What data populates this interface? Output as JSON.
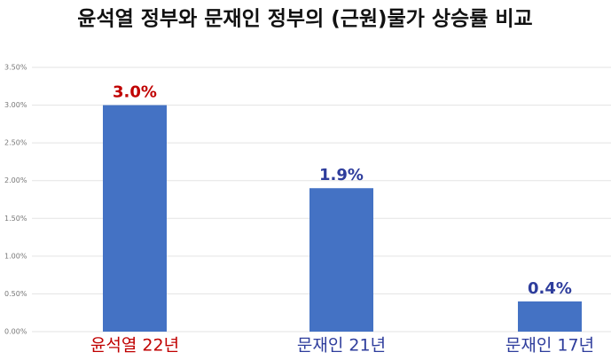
{
  "chart_data": {
    "type": "bar",
    "title": "윤석열 정부와 문재인 정부의 (근원)물가 상승률 비교",
    "categories": [
      "윤석열 22년",
      "문재인 21년",
      "문재인 17년"
    ],
    "values": [
      3.0,
      1.9,
      0.4
    ],
    "value_labels": [
      "3.0%",
      "1.9%",
      "0.4%"
    ],
    "color": "#4472c4",
    "label_colors": [
      "#c00000",
      "#2e3d9c",
      "#2e3d9c"
    ],
    "ylim": [
      0,
      3.5
    ],
    "yticks": [
      {
        "value": 0,
        "label": "0.00%"
      },
      {
        "value": 0.5,
        "label": "0.50%"
      },
      {
        "value": 1,
        "label": "1.00%"
      },
      {
        "value": 1.5,
        "label": "1.50%"
      },
      {
        "value": 2,
        "label": "2.00%"
      },
      {
        "value": 2.5,
        "label": "2.50%"
      },
      {
        "value": 3,
        "label": "3.00%"
      },
      {
        "value": 3.5,
        "label": "3.50%"
      }
    ],
    "grid": true
  }
}
